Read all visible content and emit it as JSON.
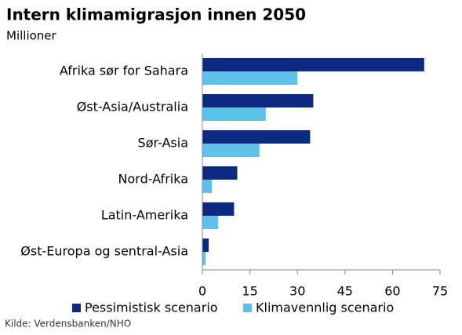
{
  "chart_data": {
    "type": "hbar",
    "title": "Intern klimamigrasjon innen 2050",
    "subtitle": "Millioner",
    "source": "Kilde: Verdensbanken/NHO",
    "categories": [
      "Afrika sør for Sahara",
      "Øst-Asia/Australia",
      "Sør-Asia",
      "Nord-Afrika",
      "Latin-Amerika",
      "Øst-Europa og sentral-Asia"
    ],
    "series": [
      {
        "name": "Pessimistisk scenario",
        "color": "#0b2a80",
        "values": [
          70,
          35,
          34,
          11,
          10,
          2
        ]
      },
      {
        "name": "Klimavennlig scenario",
        "color": "#5bc3ea",
        "values": [
          30,
          20,
          18,
          3,
          5,
          1
        ]
      }
    ],
    "xlim": [
      0,
      75
    ],
    "xticks": [
      0,
      15,
      30,
      45,
      60,
      75
    ],
    "grid": false
  }
}
